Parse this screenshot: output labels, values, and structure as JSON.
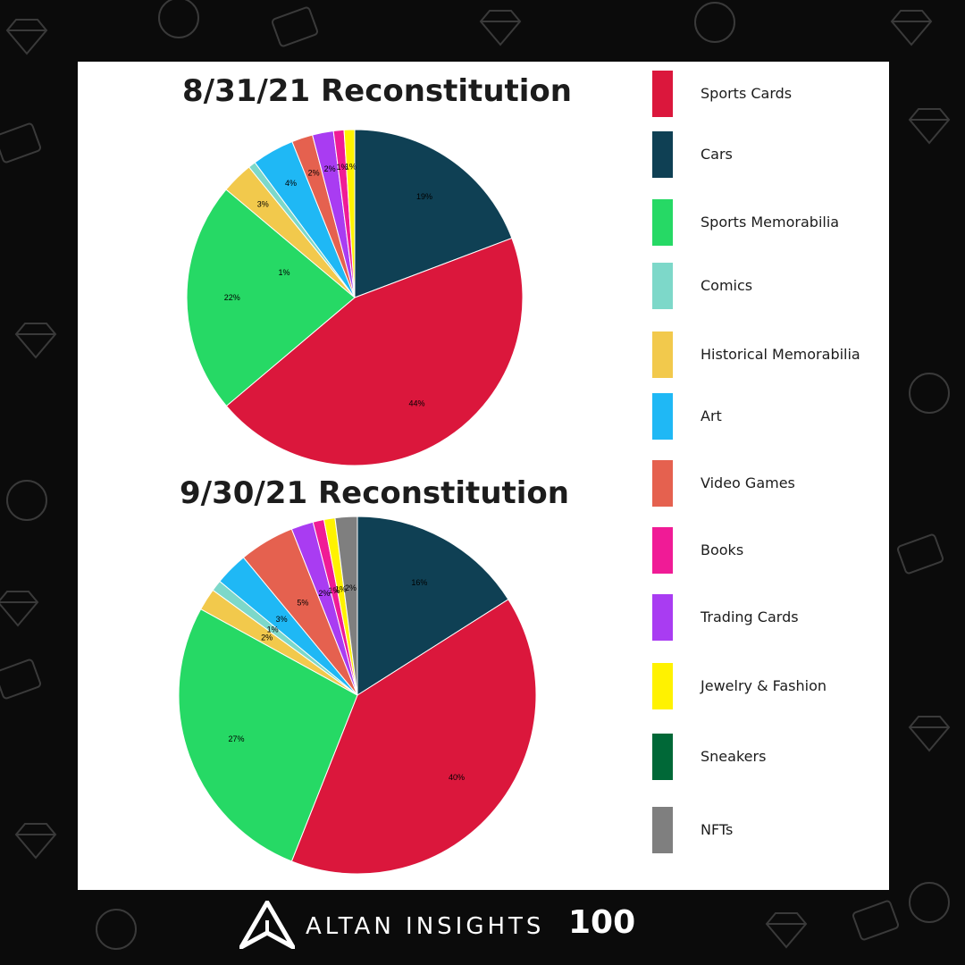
{
  "colors": {
    "background": "#0b0b0b",
    "card": "#ffffff",
    "pattern": "#3a3a3a"
  },
  "chart_data": [
    {
      "type": "pie",
      "title": "8/31/21 Reconstitution",
      "start_angle_deg": 0,
      "direction": "clockwise",
      "slices": [
        {
          "name": "Cars",
          "value": 19,
          "label": "19%",
          "color": "#0f4054"
        },
        {
          "name": "Sports Cards",
          "value": 44,
          "label": "44%",
          "color": "#db173c"
        },
        {
          "name": "Sports Memorabilia",
          "value": 22,
          "label": "22%",
          "color": "#26d965"
        },
        {
          "name": "Historical Memorabilia",
          "value": 3,
          "label": "3%",
          "color": "#f2c94c"
        },
        {
          "name": "Comics",
          "value": 0.7,
          "label": "",
          "color": "#7dd8c9"
        },
        {
          "name": "Art",
          "value": 4,
          "label": "4%",
          "color": "#1fb8f5"
        },
        {
          "name": "Video Games",
          "value": 2,
          "label": "2%",
          "color": "#e5614f"
        },
        {
          "name": "Trading Cards",
          "value": 2,
          "label": "2%",
          "color": "#a93cf2"
        },
        {
          "name": "Books",
          "value": 1,
          "label": "1%",
          "color": "#f01b96"
        },
        {
          "name": "Jewelry & Fashion",
          "value": 1,
          "label": "1%",
          "color": "#fff200"
        }
      ],
      "extra_labels": [
        "1%"
      ]
    },
    {
      "type": "pie",
      "title": "9/30/21 Reconstitution",
      "start_angle_deg": 0,
      "direction": "clockwise",
      "slices": [
        {
          "name": "Cars",
          "value": 16,
          "label": "16%",
          "color": "#0f4054"
        },
        {
          "name": "Sports Cards",
          "value": 40,
          "label": "40%",
          "color": "#db173c"
        },
        {
          "name": "Sports Memorabilia",
          "value": 27,
          "label": "27%",
          "color": "#26d965"
        },
        {
          "name": "Historical Memorabilia",
          "value": 2,
          "label": "2%",
          "color": "#f2c94c"
        },
        {
          "name": "Comics",
          "value": 1,
          "label": "1%",
          "color": "#7dd8c9"
        },
        {
          "name": "Art",
          "value": 3,
          "label": "3%",
          "color": "#1fb8f5"
        },
        {
          "name": "Video Games",
          "value": 5,
          "label": "5%",
          "color": "#e5614f"
        },
        {
          "name": "Trading Cards",
          "value": 2,
          "label": "2%",
          "color": "#a93cf2"
        },
        {
          "name": "Books",
          "value": 1,
          "label": "1%",
          "color": "#f01b96"
        },
        {
          "name": "Jewelry & Fashion",
          "value": 1,
          "label": "1%",
          "color": "#fff200"
        },
        {
          "name": "NFTs",
          "value": 2,
          "label": "2%",
          "color": "#7f7f7f"
        }
      ]
    }
  ],
  "legend": {
    "placement": "right",
    "items": [
      {
        "label": "Sports Cards",
        "color": "#db173c"
      },
      {
        "label": "Cars",
        "color": "#0f4054"
      },
      {
        "label": "Sports Memorabilia",
        "color": "#26d965"
      },
      {
        "label": "Comics",
        "color": "#7dd8c9"
      },
      {
        "label": "Historical Memorabilia",
        "color": "#f2c94c"
      },
      {
        "label": "Art",
        "color": "#1fb8f5"
      },
      {
        "label": "Video Games",
        "color": "#e5614f"
      },
      {
        "label": "Books",
        "color": "#f01b96"
      },
      {
        "label": "Trading Cards",
        "color": "#a93cf2"
      },
      {
        "label": "Jewelry & Fashion",
        "color": "#fff200"
      },
      {
        "label": "Sneakers",
        "color": "#006837"
      },
      {
        "label": "NFTs",
        "color": "#7f7f7f"
      }
    ]
  },
  "footer": {
    "brand_name": "ALTAN INSIGHTS",
    "brand_number": "100",
    "logo_icon": "altan-logo-icon"
  }
}
